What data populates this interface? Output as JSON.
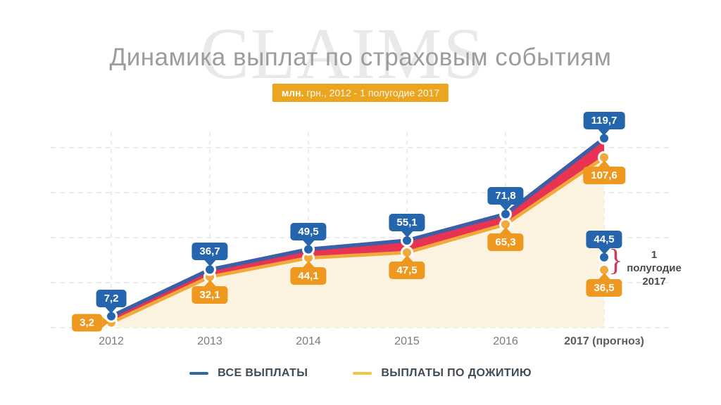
{
  "watermark": "CLAIMS",
  "chart_data": {
    "type": "area",
    "title": "Динамика выплат по страховым событиям",
    "subtitle_bold": "млн.",
    "subtitle_rest": " грн., 2012 - 1 полугодие 2017",
    "categories": [
      "2012",
      "2013",
      "2014",
      "2015",
      "2016",
      "2017 (прогноз)"
    ],
    "series": [
      {
        "name": "ВСЕ ВЫПЛАТЫ",
        "values": [
          7.2,
          36.7,
          49.5,
          55.1,
          71.8,
          119.7
        ],
        "labels": [
          "7,2",
          "36,7",
          "49,5",
          "55,1",
          "71,8",
          "119,7"
        ],
        "line_color": "#3D5FA6",
        "marker_color": "#2565AE",
        "legend_color": "#2F6A9F"
      },
      {
        "name": "ВЫПЛАТЫ ПО ДОЖИТИЮ",
        "values": [
          3.2,
          32.1,
          44.1,
          47.5,
          65.3,
          107.6
        ],
        "labels": [
          "3,2",
          "32,1",
          "44,1",
          "47,5",
          "65,3",
          "107,6"
        ],
        "line_color": "#F2A93B",
        "marker_color": "#F2A93B",
        "legend_color": "#F2C440"
      }
    ],
    "band_color": "#E83352",
    "area_fill": "#FBF3DF",
    "annotation": {
      "line1": "1 полугодие",
      "line2": "2017",
      "brace": "}",
      "points": [
        {
          "series": "ВСЕ ВЫПЛАТЫ",
          "value": 44.5,
          "label": "44,5"
        },
        {
          "series": "ВЫПЛАТЫ ПО ДОЖИТИЮ",
          "value": 36.5,
          "label": "36,5"
        }
      ]
    },
    "ylim": [
      0,
      128
    ],
    "grid": true,
    "legend_position": "bottom"
  },
  "colors": {
    "tooltip_blue": "#2565AE",
    "tooltip_orange": "#EF981F",
    "badge_gold": "#EBA51E",
    "title_gray": "#9C9C9C",
    "watermark_gray": "#E9E9E9",
    "grid_gray": "#E0E0E0",
    "axis_label_gray": "#7B7B7B",
    "legend_text": "#3F4B55",
    "annotation_text": "#4A4A4A",
    "brace_red": "#C93B5E"
  }
}
